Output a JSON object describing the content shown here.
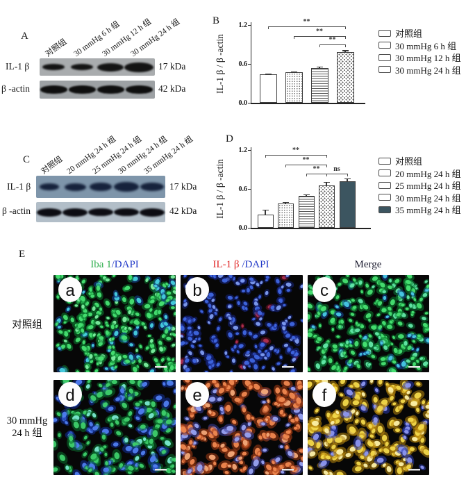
{
  "panel_a": {
    "label": "A",
    "lane_labels": [
      "对照组",
      "30 mmHg 6 h 组",
      "30 mmHg 12 h 组",
      "30 mmHg 24 h 组"
    ],
    "protein_labels": [
      "IL-1 β",
      "β -actin"
    ],
    "kda_labels": [
      "17 kDa",
      "42 kDa"
    ],
    "band_intensities": {
      "il1b": [
        0.35,
        0.42,
        0.75,
        1.0
      ],
      "actin": [
        0.9,
        0.9,
        0.9,
        0.9
      ]
    }
  },
  "panel_b": {
    "label": "B"
  },
  "panel_c": {
    "label": "C",
    "lane_labels": [
      "对照组",
      "20 mmHg 24 h 组",
      "25 mmHg 24 h 组",
      "30 mmHg 24 h 组",
      "35 mmHg 24 h 组"
    ],
    "protein_labels": [
      "IL-1 β",
      "β -actin"
    ],
    "kda_labels": [
      "17 kDa",
      "42 kDa"
    ],
    "band_intensities": {
      "il1b": [
        0.3,
        0.5,
        0.55,
        0.85,
        0.7
      ],
      "actin": [
        1,
        1,
        0.95,
        0.95,
        1
      ]
    }
  },
  "panel_d": {
    "label": "D"
  },
  "panel_e": {
    "label": "E",
    "col_headers": [
      {
        "parts": [
          {
            "text": "Iba 1",
            "color": "#2eae4d"
          },
          {
            "text": "/DAPI",
            "color": "#2038c8"
          }
        ]
      },
      {
        "parts": [
          {
            "text": "IL-1 β ",
            "color": "#e02424"
          },
          {
            "text": "/DAPI",
            "color": "#2038c8"
          }
        ]
      },
      {
        "parts": [
          {
            "text": "Merge",
            "color": "#1a1a2e"
          }
        ]
      }
    ],
    "row_labels": [
      [
        "对照组"
      ],
      [
        "30 mmHg",
        "24 h 组"
      ]
    ],
    "micrographs": [
      {
        "letter": "a",
        "seed": 11,
        "count": 260,
        "rmin": 2.2,
        "rmax": 4.4,
        "pops": [
          {
            "glow": "#0b8030",
            "core": "#47e272",
            "frac": 0.62
          },
          {
            "glow": "#0b8030",
            "core": "#7cf0a0",
            "frac": 0.23
          },
          {
            "glow": "#14489d",
            "core": "#47cfe2",
            "frac": 0.15
          }
        ]
      },
      {
        "letter": "b",
        "seed": 23,
        "count": 210,
        "rmin": 2.2,
        "rmax": 4.2,
        "pops": [
          {
            "glow": "#14227e",
            "core": "#3f66e0",
            "frac": 0.7
          },
          {
            "glow": "#14227e",
            "core": "#7e9cf2",
            "frac": 0.22
          },
          {
            "glow": "#701025",
            "core": "#b03050",
            "frac": 0.08
          }
        ]
      },
      {
        "letter": "c",
        "seed": 37,
        "count": 255,
        "rmin": 2.2,
        "rmax": 4.4,
        "pops": [
          {
            "glow": "#0b8030",
            "core": "#47e272",
            "frac": 0.62
          },
          {
            "glow": "#0b7a3a",
            "core": "#62e8a8",
            "frac": 0.23
          },
          {
            "glow": "#14489d",
            "core": "#49c8e8",
            "frac": 0.15
          }
        ]
      },
      {
        "letter": "d",
        "seed": 51,
        "count": 200,
        "rmin": 2.6,
        "rmax": 5.4,
        "pops": [
          {
            "glow": "#0a6e2c",
            "core": "#3ecf6a",
            "frac": 0.5
          },
          {
            "glow": "#123099",
            "core": "#4f7df0",
            "frac": 0.35
          },
          {
            "glow": "#0a6e2c",
            "core": "#79e8d0",
            "frac": 0.15
          }
        ]
      },
      {
        "letter": "e",
        "seed": 67,
        "count": 205,
        "rmin": 2.6,
        "rmax": 5.4,
        "pops": [
          {
            "glow": "#a63c14",
            "core": "#ef8850",
            "frac": 0.55
          },
          {
            "glow": "#a63c14",
            "core": "#f2a878",
            "frac": 0.2
          },
          {
            "glow": "#3a3f9e",
            "core": "#98a2f2",
            "frac": 0.25
          }
        ]
      },
      {
        "letter": "f",
        "seed": 83,
        "count": 205,
        "rmin": 2.6,
        "rmax": 5.4,
        "pops": [
          {
            "glow": "#b8860b",
            "core": "#f2d84a",
            "frac": 0.55
          },
          {
            "glow": "#b8860b",
            "core": "#fcf0a8",
            "frac": 0.25
          },
          {
            "glow": "#2a3bb0",
            "core": "#8c96ef",
            "frac": 0.2
          }
        ]
      }
    ]
  },
  "chart_data": [
    {
      "type": "bar",
      "panel": "B",
      "title": "",
      "xlabel": "",
      "ylabel": "IL-1 β / β -actin",
      "ylim": [
        0,
        1.2
      ],
      "yticks": [
        "0.0",
        "0.6",
        "1.2"
      ],
      "grid": false,
      "legend_position": "right",
      "categories": [
        "对照组",
        "30 mmHg 6 h 组",
        "30 mmHg 12 h 组",
        "30 mmHg 24 h 组"
      ],
      "values": [
        0.44,
        0.47,
        0.54,
        0.78
      ],
      "errors": [
        0.012,
        0.012,
        0.015,
        0.03
      ],
      "bar_styles": [
        "plain",
        "dots",
        "hlines",
        "checker"
      ],
      "solid_color": "#3c5560",
      "significance": [
        {
          "from": 0,
          "to": 3,
          "label": "**",
          "y": 1.18
        },
        {
          "from": 1,
          "to": 3,
          "label": "**",
          "y": 1.03
        },
        {
          "from": 2,
          "to": 3,
          "label": "**",
          "y": 0.9
        }
      ],
      "legend": [
        "对照组",
        "30 mmHg 6 h 组",
        "30 mmHg 12 h 组",
        "30 mmHg 24 h 组"
      ]
    },
    {
      "type": "bar",
      "panel": "D",
      "title": "",
      "xlabel": "",
      "ylabel": "IL-1 β / β -actin",
      "ylim": [
        0,
        1.2
      ],
      "yticks": [
        "0.0",
        "0.6",
        "1.2"
      ],
      "grid": false,
      "legend_position": "right",
      "categories": [
        "对照组",
        "20 mmHg 24 h 组",
        "25 mmHg 24 h 组",
        "30 mmHg 24 h 组",
        "35 mmHg 24 h 组"
      ],
      "values": [
        0.2,
        0.37,
        0.49,
        0.65,
        0.72
      ],
      "errors": [
        0.08,
        0.03,
        0.025,
        0.06,
        0.045
      ],
      "bar_styles": [
        "plain",
        "dots",
        "hlines",
        "checker",
        "solid"
      ],
      "solid_color": "#3c5560",
      "significance": [
        {
          "from": 0,
          "to": 3,
          "label": "**",
          "y": 1.12
        },
        {
          "from": 1,
          "to": 3,
          "label": "**",
          "y": 0.97
        },
        {
          "from": 2,
          "to": 3,
          "label": "**",
          "y": 0.84
        },
        {
          "from": 3,
          "to": 4,
          "label": "ns",
          "y": 0.84
        }
      ],
      "legend": [
        "对照组",
        "20 mmHg 24 h 组",
        "25 mmHg 24 h 组",
        "30 mmHg 24 h 组",
        "35 mmHg 24 h 组"
      ]
    }
  ]
}
